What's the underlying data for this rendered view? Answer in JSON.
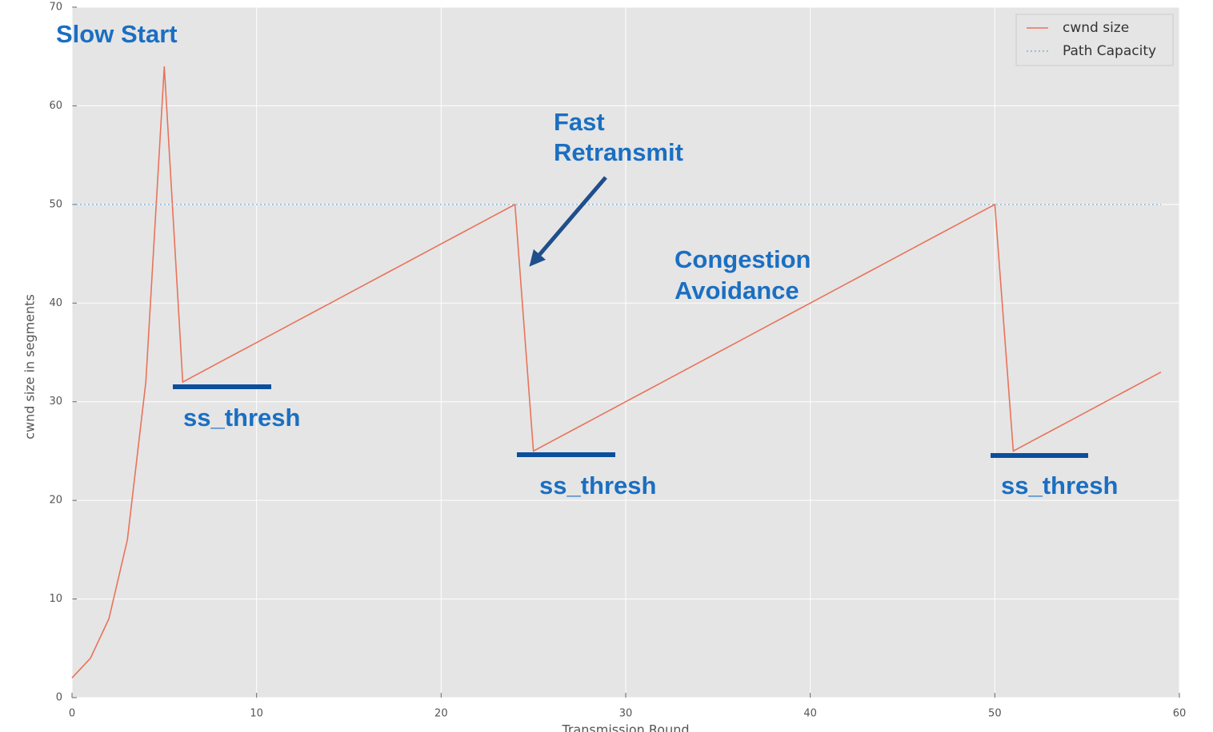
{
  "chart_data": {
    "type": "line",
    "xlabel": "Transmission Round",
    "ylabel": "cwnd size in segments",
    "xlim": [
      0,
      60
    ],
    "ylim": [
      0,
      70
    ],
    "xticks": [
      0,
      10,
      20,
      30,
      40,
      50,
      60
    ],
    "yticks": [
      0,
      10,
      20,
      30,
      40,
      50,
      60,
      70
    ],
    "grid": true,
    "legend": "upper right",
    "series": [
      {
        "name": "cwnd size",
        "color": "#e8735a",
        "style": "solid",
        "x": [
          0,
          1,
          2,
          3,
          4,
          5,
          6,
          7,
          8,
          9,
          10,
          11,
          12,
          13,
          14,
          15,
          16,
          17,
          18,
          19,
          20,
          21,
          22,
          23,
          24,
          25,
          26,
          27,
          28,
          29,
          30,
          31,
          32,
          33,
          34,
          35,
          36,
          37,
          38,
          39,
          40,
          41,
          42,
          43,
          44,
          45,
          46,
          47,
          48,
          49,
          50,
          51,
          52,
          53,
          54,
          55,
          56,
          57,
          58,
          59
        ],
        "values": [
          2,
          4,
          8,
          16,
          32,
          64,
          32,
          33,
          34,
          35,
          36,
          37,
          38,
          39,
          40,
          41,
          42,
          43,
          44,
          45,
          46,
          47,
          48,
          49,
          50,
          25,
          26,
          27,
          28,
          29,
          30,
          31,
          32,
          33,
          34,
          35,
          36,
          37,
          38,
          39,
          40,
          41,
          42,
          43,
          44,
          45,
          46,
          47,
          48,
          49,
          50,
          25,
          26,
          27,
          28,
          29,
          30,
          31,
          32,
          33
        ]
      },
      {
        "name": "Path Capacity",
        "color": "#7aaed6",
        "style": "dotted",
        "x": [
          0,
          59
        ],
        "values": [
          50,
          50
        ]
      }
    ],
    "annotations": [
      "Slow Start",
      "Fast",
      "Retransmit",
      "Congestion",
      "Avoidance",
      "ss_thresh",
      "ss_thresh",
      "ss_thresh"
    ]
  }
}
